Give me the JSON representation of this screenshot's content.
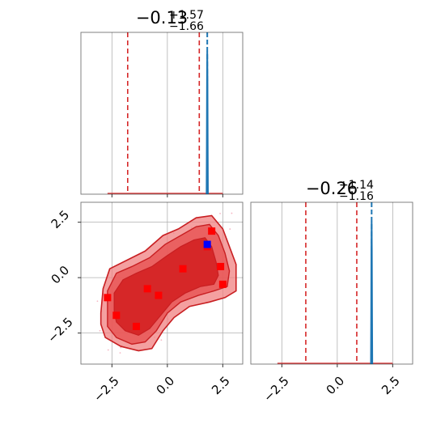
{
  "chart_data": {
    "type": "corner",
    "parameters": [
      {
        "title": {
          "median": "−0.13",
          "plus": "+1.57",
          "minus": "−1.66"
        },
        "median": -0.13,
        "err_plus": 1.57,
        "err_minus": 1.66,
        "quantile_lines": [
          -1.79,
          1.44
        ],
        "truth_line": 1.8,
        "xlim": [
          -3.9,
          3.4
        ],
        "truth_profile_x": [
          1.77,
          1.78,
          1.79,
          1.8,
          1.81,
          1.82,
          1.83
        ],
        "truth_profile_y": [
          0.0,
          0.35,
          0.8,
          1.0,
          0.8,
          0.35,
          0.0
        ]
      },
      {
        "title": {
          "median": "−0.26",
          "plus": "+1.14",
          "minus": "−1.16"
        },
        "median": -0.26,
        "err_plus": 1.14,
        "err_minus": 1.16,
        "quantile_lines": [
          -1.42,
          0.88
        ],
        "truth_line": 1.55,
        "xlim": [
          -3.9,
          3.4
        ],
        "truth_profile_x": [
          1.52,
          1.53,
          1.54,
          1.55,
          1.56,
          1.57,
          1.58
        ],
        "truth_profile_y": [
          0.0,
          0.35,
          0.8,
          1.0,
          0.8,
          0.35,
          0.0
        ]
      }
    ],
    "joint": {
      "xlim": [
        -3.9,
        3.4
      ],
      "ylim": [
        -3.9,
        3.4
      ],
      "xticks": [
        "−2.5",
        "0.0",
        "2.5"
      ],
      "xtick_values": [
        -2.5,
        0.0,
        2.5
      ],
      "yticks": [
        "−2.5",
        "0.0",
        "2.5"
      ],
      "ytick_values": [
        -2.5,
        0.0,
        2.5
      ],
      "contour_outer": [
        [
          -3.0,
          -1.6
        ],
        [
          -2.9,
          -0.5
        ],
        [
          -2.6,
          0.4
        ],
        [
          -1.8,
          0.8
        ],
        [
          -1.0,
          1.2
        ],
        [
          -0.2,
          1.9
        ],
        [
          0.5,
          2.2
        ],
        [
          1.3,
          2.7
        ],
        [
          2.0,
          2.8
        ],
        [
          2.5,
          2.2
        ],
        [
          2.8,
          1.4
        ],
        [
          3.1,
          0.6
        ],
        [
          3.1,
          -0.6
        ],
        [
          2.6,
          -0.9
        ],
        [
          1.9,
          -1.1
        ],
        [
          1.0,
          -1.3
        ],
        [
          0.3,
          -1.8
        ],
        [
          -0.2,
          -2.4
        ],
        [
          -0.7,
          -3.2
        ],
        [
          -1.3,
          -3.3
        ],
        [
          -2.1,
          -3.1
        ],
        [
          -2.8,
          -2.7
        ],
        [
          -3.0,
          -2.1
        ]
      ],
      "contour_mid": [
        [
          -2.7,
          -1.6
        ],
        [
          -2.7,
          -0.6
        ],
        [
          -2.3,
          0.2
        ],
        [
          -1.6,
          0.5
        ],
        [
          -0.8,
          0.9
        ],
        [
          -0.1,
          1.5
        ],
        [
          0.6,
          1.9
        ],
        [
          1.3,
          2.3
        ],
        [
          1.9,
          2.4
        ],
        [
          2.3,
          1.9
        ],
        [
          2.6,
          1.1
        ],
        [
          2.8,
          0.3
        ],
        [
          2.7,
          -0.4
        ],
        [
          2.1,
          -0.6
        ],
        [
          1.4,
          -0.8
        ],
        [
          0.6,
          -1.1
        ],
        [
          0.0,
          -1.6
        ],
        [
          -0.5,
          -2.4
        ],
        [
          -1.0,
          -2.9
        ],
        [
          -1.6,
          -3.0
        ],
        [
          -2.3,
          -2.7
        ],
        [
          -2.7,
          -2.2
        ]
      ],
      "contour_inner": [
        [
          -2.4,
          -1.5
        ],
        [
          -2.4,
          -0.7
        ],
        [
          -2.0,
          -0.1
        ],
        [
          -1.4,
          0.2
        ],
        [
          -0.7,
          0.5
        ],
        [
          0.0,
          1.0
        ],
        [
          0.6,
          1.4
        ],
        [
          1.2,
          1.7
        ],
        [
          1.7,
          1.8
        ],
        [
          2.0,
          1.4
        ],
        [
          2.2,
          0.7
        ],
        [
          2.3,
          0.1
        ],
        [
          2.1,
          -0.3
        ],
        [
          1.5,
          -0.4
        ],
        [
          0.8,
          -0.7
        ],
        [
          0.2,
          -1.1
        ],
        [
          -0.3,
          -1.7
        ],
        [
          -0.8,
          -2.3
        ],
        [
          -1.3,
          -2.6
        ],
        [
          -1.9,
          -2.4
        ],
        [
          -2.3,
          -2.0
        ]
      ],
      "samples": [
        [
          2.0,
          2.1
        ],
        [
          1.8,
          1.4
        ],
        [
          2.4,
          0.5
        ],
        [
          2.5,
          -0.3
        ],
        [
          0.7,
          0.4
        ],
        [
          -0.9,
          -0.5
        ],
        [
          -0.4,
          -0.8
        ],
        [
          -2.7,
          -0.9
        ],
        [
          -2.3,
          -1.7
        ],
        [
          -1.4,
          -2.2
        ]
      ],
      "truth_point": [
        1.8,
        1.5
      ],
      "colors": {
        "outer": "#f08080",
        "mid": "#e85656",
        "inner": "#d62728",
        "edge": "#c81f22",
        "sample": "#ff0000",
        "truth": "#0000ff",
        "scatter": "#f6b6c4"
      }
    },
    "colors": {
      "quantile": "#d62728",
      "truth": "#1f77b4",
      "hist": "#d62728"
    },
    "grid": true
  }
}
